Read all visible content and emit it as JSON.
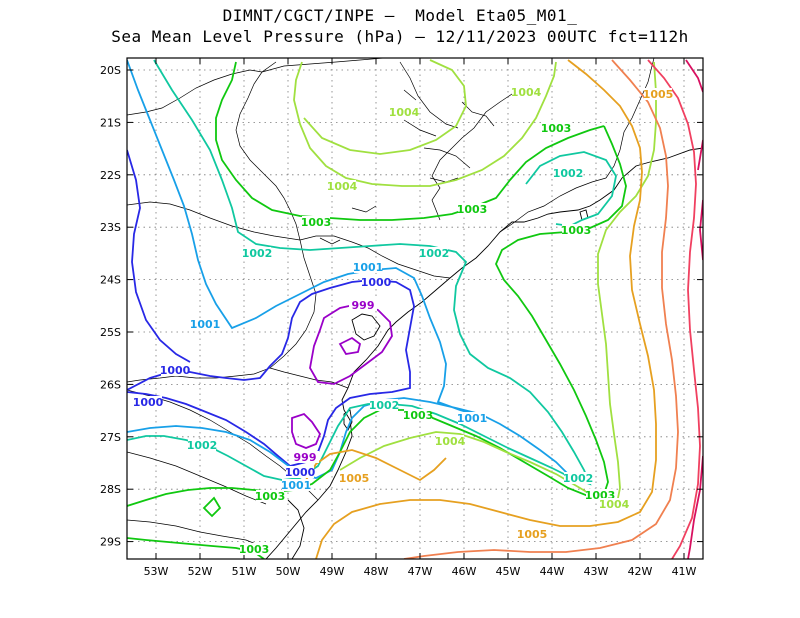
{
  "title": {
    "line1": "DIMNT/CGCT/INPE —  Model Eta05_M01_",
    "line2": "Sea Mean Level Pressure (hPa) — 12/11/2023 00UTC fct=112h"
  },
  "axes": {
    "lon_ticks": [
      "53W",
      "52W",
      "51W",
      "50W",
      "49W",
      "48W",
      "47W",
      "46W",
      "45W",
      "44W",
      "43W",
      "42W",
      "41W"
    ],
    "lat_ticks": [
      "20S",
      "21S",
      "22S",
      "23S",
      "24S",
      "25S",
      "26S",
      "27S",
      "28S",
      "29S"
    ]
  },
  "colors": {
    "c999": "#9a00c8",
    "c1000": "#2828e6",
    "c1001": "#18a0e8",
    "c1002": "#10c8a0",
    "c1003": "#10c810",
    "c1004": "#a0e040",
    "c1005": "#e6a020",
    "c1006": "#f08050",
    "c1007": "#f04060",
    "c1008": "#d81060",
    "coast": "#000000",
    "grid": "#7a7a7a"
  },
  "contour_labels": [
    {
      "text": "999",
      "color_key": "c999"
    },
    {
      "text": "999",
      "color_key": "c999"
    },
    {
      "text": "1000",
      "color_key": "c1000"
    },
    {
      "text": "1000",
      "color_key": "c1000"
    },
    {
      "text": "1000",
      "color_key": "c1000"
    },
    {
      "text": "1000",
      "color_key": "c1000"
    },
    {
      "text": "1001",
      "color_key": "c1001"
    },
    {
      "text": "1001",
      "color_key": "c1001"
    },
    {
      "text": "1001",
      "color_key": "c1001"
    },
    {
      "text": "1001",
      "color_key": "c1001"
    },
    {
      "text": "1002",
      "color_key": "c1002"
    },
    {
      "text": "1002",
      "color_key": "c1002"
    },
    {
      "text": "1002",
      "color_key": "c1002"
    },
    {
      "text": "1002",
      "color_key": "c1002"
    },
    {
      "text": "1002",
      "color_key": "c1002"
    },
    {
      "text": "1002",
      "color_key": "c1002"
    },
    {
      "text": "1003",
      "color_key": "c1003"
    },
    {
      "text": "1003",
      "color_key": "c1003"
    },
    {
      "text": "1003",
      "color_key": "c1003"
    },
    {
      "text": "1003",
      "color_key": "c1003"
    },
    {
      "text": "1003",
      "color_key": "c1003"
    },
    {
      "text": "1003",
      "color_key": "c1003"
    },
    {
      "text": "1003",
      "color_key": "c1003"
    },
    {
      "text": "1003",
      "color_key": "c1003"
    },
    {
      "text": "1004",
      "color_key": "c1004"
    },
    {
      "text": "1004",
      "color_key": "c1004"
    },
    {
      "text": "1004",
      "color_key": "c1004"
    },
    {
      "text": "1004",
      "color_key": "c1004"
    },
    {
      "text": "1004",
      "color_key": "c1004"
    },
    {
      "text": "1005",
      "color_key": "c1005"
    },
    {
      "text": "1005",
      "color_key": "c1005"
    },
    {
      "text": "1005",
      "color_key": "c1005"
    }
  ]
}
